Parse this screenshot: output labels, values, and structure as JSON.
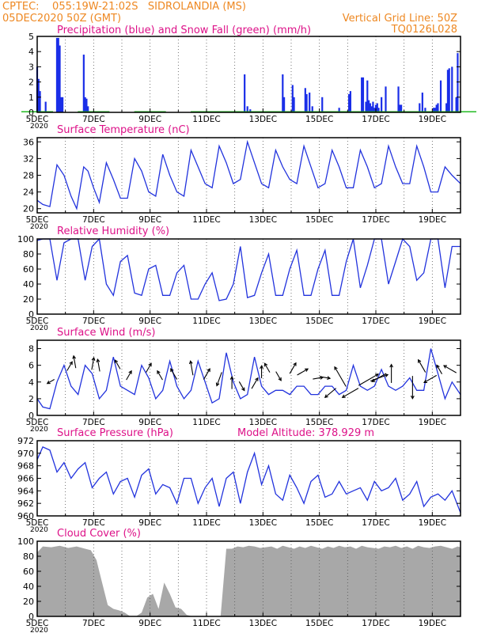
{
  "header": {
    "line1_left": "CPTEC:    055:19W-21:02S   SIDROLANDIA (MS)",
    "line2_left": "05DEC2020 50Z (GMT)",
    "line2_right": "Vertical Grid Line: 50Z",
    "line3_right": "TQ0126L028",
    "orange": "#ee8822",
    "magenta": "#dd1188"
  },
  "x_ticks": {
    "labels": [
      "5DEC",
      "7DEC",
      "9DEC",
      "11DEC",
      "13DEC",
      "15DEC",
      "17DEC",
      "19DEC"
    ],
    "days": [
      0,
      2,
      4,
      6,
      8,
      10,
      12,
      14
    ],
    "range": [
      0,
      15
    ],
    "year_label": "2020"
  },
  "chart_data": [
    {
      "type": "bar",
      "title": "Precipitation (blue) and Snow Fall (green) (mm/h)",
      "ylim": [
        0,
        5
      ],
      "yticks": [
        "0",
        "1",
        "2",
        "3",
        "4",
        "5"
      ],
      "series": [
        {
          "color": "#1a2ee8",
          "x": [
            0.0,
            0.05,
            0.1,
            0.3,
            0.7,
            0.75,
            0.8,
            0.85,
            0.9,
            1.65,
            1.7,
            1.75,
            1.8,
            7.35,
            7.45,
            7.55,
            8.7,
            8.75,
            9.05,
            9.1,
            9.5,
            9.55,
            9.65,
            9.75,
            10.1,
            10.7,
            11.05,
            11.1,
            11.5,
            11.55,
            11.65,
            11.7,
            11.75,
            11.8,
            11.85,
            11.9,
            11.95,
            12.0,
            12.05,
            12.1,
            12.2,
            12.35,
            12.8,
            12.85,
            12.9,
            13.55,
            13.65,
            13.75,
            14.05,
            14.1,
            14.15,
            14.2,
            14.3,
            14.5,
            14.55,
            14.6,
            14.7,
            14.85,
            14.9
          ],
          "values": [
            3.0,
            2.2,
            1.4,
            0.7,
            4.9,
            4.9,
            4.4,
            1.0,
            1.0,
            3.8,
            1.0,
            0.9,
            0.4,
            2.5,
            0.4,
            0.2,
            2.5,
            1.0,
            1.8,
            1.0,
            1.6,
            1.2,
            1.3,
            0.4,
            1.0,
            0.3,
            1.2,
            1.4,
            2.3,
            2.3,
            0.7,
            2.1,
            0.8,
            0.6,
            0.4,
            0.7,
            0.3,
            0.5,
            0.6,
            0.3,
            1.0,
            1.7,
            1.7,
            0.5,
            0.5,
            0.6,
            1.3,
            0.3,
            0.3,
            0.3,
            0.5,
            0.6,
            2.1,
            0.6,
            2.8,
            2.9,
            3.0,
            1.0,
            3.9
          ]
        },
        {
          "color": "#22bb22",
          "x": [
            0,
            2,
            4,
            6,
            7,
            8,
            9,
            10,
            11,
            12,
            13,
            14,
            15
          ],
          "values": [
            0.05,
            0.05,
            0.05,
            0.05,
            0.05,
            0.05,
            0.05,
            0.05,
            0.05,
            0.05,
            0.05,
            0.05,
            0.05
          ]
        }
      ]
    },
    {
      "type": "line",
      "title": "Surface Temperature (nC)",
      "ylim": [
        19,
        37
      ],
      "yticks": [
        "20",
        "24",
        "28",
        "32",
        "36"
      ],
      "tick_values": [
        20,
        24,
        28,
        32,
        36
      ],
      "x": [
        0.0,
        0.2,
        0.45,
        0.7,
        0.95,
        1.2,
        1.4,
        1.65,
        1.8,
        2.0,
        2.2,
        2.45,
        2.7,
        2.95,
        3.2,
        3.45,
        3.7,
        3.95,
        4.2,
        4.45,
        4.7,
        4.95,
        5.2,
        5.45,
        5.7,
        5.95,
        6.2,
        6.45,
        6.7,
        6.95,
        7.2,
        7.45,
        7.7,
        7.95,
        8.2,
        8.45,
        8.7,
        8.95,
        9.2,
        9.45,
        9.7,
        9.95,
        10.2,
        10.45,
        10.7,
        10.95,
        11.2,
        11.45,
        11.7,
        11.95,
        12.2,
        12.45,
        12.7,
        12.95,
        13.2,
        13.45,
        13.7,
        13.95,
        14.2,
        14.45,
        14.7,
        15.0
      ],
      "values": [
        22,
        21,
        20.5,
        30.5,
        28,
        23,
        20,
        30,
        29,
        25,
        21.5,
        31,
        27,
        22.5,
        22.5,
        32,
        29,
        24,
        23,
        33,
        28,
        24,
        23,
        34,
        30,
        26,
        25,
        35,
        31,
        26,
        27,
        36,
        31,
        26,
        25,
        34,
        30,
        27,
        26,
        35,
        30,
        25,
        26,
        34,
        30,
        25,
        25,
        34,
        30,
        25,
        26,
        35,
        30,
        26,
        26,
        35,
        30,
        24,
        24,
        30,
        28,
        26
      ]
    },
    {
      "type": "line",
      "title": "Relative Humidity (%)",
      "ylim": [
        0,
        100
      ],
      "yticks": [
        "0",
        "20",
        "40",
        "60",
        "80",
        "100"
      ],
      "tick_values": [
        0,
        20,
        40,
        60,
        80,
        100
      ],
      "x": [
        0.0,
        0.2,
        0.45,
        0.7,
        0.95,
        1.2,
        1.45,
        1.7,
        1.95,
        2.2,
        2.45,
        2.7,
        2.95,
        3.2,
        3.45,
        3.7,
        3.95,
        4.2,
        4.45,
        4.7,
        4.95,
        5.2,
        5.45,
        5.7,
        5.95,
        6.2,
        6.45,
        6.7,
        6.95,
        7.2,
        7.45,
        7.7,
        7.95,
        8.2,
        8.45,
        8.7,
        8.95,
        9.2,
        9.45,
        9.7,
        9.95,
        10.2,
        10.45,
        10.7,
        10.95,
        11.2,
        11.45,
        11.7,
        11.95,
        12.2,
        12.45,
        12.7,
        12.95,
        13.2,
        13.45,
        13.7,
        13.95,
        14.2,
        14.45,
        14.7,
        15.0
      ],
      "values": [
        98,
        100,
        100,
        45,
        95,
        100,
        100,
        45,
        90,
        100,
        40,
        25,
        70,
        78,
        28,
        25,
        60,
        65,
        25,
        25,
        55,
        65,
        20,
        20,
        40,
        55,
        18,
        20,
        40,
        90,
        22,
        25,
        55,
        80,
        25,
        25,
        60,
        85,
        25,
        25,
        60,
        85,
        25,
        25,
        70,
        100,
        35,
        65,
        100,
        100,
        40,
        70,
        100,
        90,
        45,
        55,
        100,
        100,
        35,
        90,
        90
      ]
    },
    {
      "type": "line",
      "title": "Surface Wind (m/s)",
      "ylim": [
        0,
        9
      ],
      "yticks": [
        "0",
        "2",
        "4",
        "6",
        "8"
      ],
      "tick_values": [
        0,
        2,
        4,
        6,
        8
      ],
      "x": [
        0.0,
        0.2,
        0.45,
        0.7,
        0.95,
        1.2,
        1.45,
        1.7,
        1.95,
        2.2,
        2.45,
        2.7,
        2.95,
        3.2,
        3.45,
        3.7,
        3.95,
        4.2,
        4.45,
        4.7,
        4.95,
        5.2,
        5.45,
        5.7,
        5.95,
        6.2,
        6.45,
        6.7,
        6.95,
        7.2,
        7.45,
        7.7,
        7.95,
        8.2,
        8.45,
        8.7,
        8.95,
        9.2,
        9.45,
        9.7,
        9.95,
        10.2,
        10.45,
        10.7,
        10.95,
        11.2,
        11.45,
        11.7,
        11.95,
        12.2,
        12.45,
        12.7,
        12.95,
        13.2,
        13.45,
        13.7,
        13.95,
        14.2,
        14.45,
        14.7,
        15.0
      ],
      "values": [
        2,
        1,
        0.8,
        4,
        6,
        3.5,
        2.5,
        6,
        5,
        2,
        3,
        7,
        3.5,
        3,
        2.5,
        6,
        4.5,
        2,
        3,
        6.5,
        3.5,
        2,
        3,
        6.5,
        4,
        1.5,
        2,
        7.5,
        4,
        2,
        2.5,
        7,
        3.5,
        2.5,
        3,
        3,
        2.5,
        3.5,
        3.5,
        2.5,
        2.5,
        3.5,
        3.5,
        2.5,
        3,
        6,
        3.5,
        3,
        3.5,
        5.5,
        3.5,
        3,
        3.5,
        4.5,
        3,
        3,
        8,
        5,
        2,
        4,
        2.5
      ],
      "wind_arrows": {
        "x": [
          0.55,
          1.1,
          1.35,
          1.95,
          2.2,
          2.9,
          3.2,
          3.9,
          4.4,
          4.9,
          5.5,
          5.95,
          6.5,
          6.9,
          7.2,
          7.65,
          7.95,
          8.2,
          8.5,
          9.0,
          9.3,
          9.85,
          10.1,
          10.5,
          10.85,
          11.25,
          11.55,
          11.95,
          12.25,
          12.55,
          13.3,
          13.7,
          14.05,
          14.3,
          14.75
        ],
        "y": [
          4.2,
          5.6,
          6.0,
          5.8,
          5.6,
          5.8,
          4.5,
          5.4,
          4.5,
          4.6,
          5.2,
          4.6,
          4.8,
          3.5,
          3.8,
          3.5,
          4.8,
          5.4,
          5.0,
          5.3,
          5.0,
          4.4,
          4.6,
          3.0,
          4.0,
          3.0,
          3.9,
          4.3,
          4.8,
          4.4,
          4.1,
          5.5,
          4.6,
          5.2,
          5.3
        ],
        "dir_deg": [
          210,
          60,
          100,
          80,
          100,
          120,
          60,
          60,
          120,
          120,
          100,
          60,
          250,
          90,
          300,
          60,
          90,
          120,
          300,
          60,
          30,
          10,
          350,
          220,
          120,
          210,
          30,
          20,
          210,
          90,
          270,
          120,
          210,
          120,
          150
        ],
        "len_px": [
          8,
          10,
          12,
          12,
          12,
          10,
          10,
          10,
          10,
          12,
          14,
          12,
          14,
          12,
          10,
          12,
          12,
          10,
          10,
          12,
          12,
          10,
          10,
          14,
          22,
          18,
          22,
          18,
          16,
          18,
          22,
          14,
          14,
          10,
          14
        ]
      }
    },
    {
      "type": "line",
      "title": "Surface Pressure (hPa)",
      "annotation": "Model Altitude: 378.929 m",
      "ylim": [
        960,
        972
      ],
      "yticks": [
        "960",
        "962",
        "964",
        "966",
        "968",
        "970",
        "972"
      ],
      "tick_values": [
        960,
        962,
        964,
        966,
        968,
        970,
        972
      ],
      "x": [
        0.0,
        0.2,
        0.45,
        0.7,
        0.95,
        1.2,
        1.45,
        1.7,
        1.95,
        2.2,
        2.45,
        2.7,
        2.95,
        3.2,
        3.45,
        3.7,
        3.95,
        4.2,
        4.45,
        4.7,
        4.95,
        5.2,
        5.45,
        5.7,
        5.95,
        6.2,
        6.45,
        6.7,
        6.95,
        7.2,
        7.45,
        7.7,
        7.95,
        8.2,
        8.45,
        8.7,
        8.95,
        9.2,
        9.45,
        9.7,
        9.95,
        10.2,
        10.45,
        10.7,
        10.95,
        11.2,
        11.45,
        11.7,
        11.95,
        12.2,
        12.45,
        12.7,
        12.95,
        13.2,
        13.45,
        13.7,
        13.95,
        14.2,
        14.45,
        14.7,
        15.0
      ],
      "values": [
        969,
        971,
        970.5,
        967,
        968.5,
        966,
        967.5,
        968.5,
        964.5,
        966,
        967,
        963.5,
        965.5,
        966,
        963,
        966.5,
        967.5,
        963.5,
        965,
        964.5,
        962,
        966,
        966,
        962,
        964.5,
        966,
        961.5,
        966,
        967,
        962,
        967,
        970,
        965,
        968,
        963.5,
        962.5,
        966.5,
        964.5,
        962,
        965.5,
        966.5,
        963,
        963.5,
        965.5,
        963.5,
        964,
        964.5,
        962.5,
        965.5,
        964,
        964.5,
        966,
        962.5,
        963.5,
        965.5,
        961.5,
        963,
        963.5,
        962.5,
        964,
        960.5
      ]
    },
    {
      "type": "area",
      "title": "Cloud Cover (%)",
      "ylim": [
        0,
        100
      ],
      "yticks": [
        "0",
        "20",
        "40",
        "60",
        "80",
        "100"
      ],
      "tick_values": [
        0,
        20,
        40,
        60,
        80,
        100
      ],
      "color": "#a8a8a8",
      "x": [
        0.0,
        0.2,
        0.5,
        0.8,
        1.1,
        1.4,
        1.7,
        1.9,
        2.1,
        2.3,
        2.5,
        2.7,
        2.9,
        3.1,
        3.3,
        3.5,
        3.7,
        3.9,
        4.1,
        4.3,
        4.5,
        4.7,
        4.9,
        5.1,
        5.3,
        5.5,
        5.7,
        5.9,
        6.1,
        6.3,
        6.5,
        6.7,
        6.9,
        7.1,
        7.3,
        7.5,
        7.7,
        7.9,
        8.1,
        8.3,
        8.5,
        8.7,
        8.9,
        9.1,
        9.3,
        9.5,
        9.7,
        9.9,
        10.1,
        10.3,
        10.5,
        10.7,
        10.9,
        11.1,
        11.3,
        11.5,
        11.7,
        11.9,
        12.1,
        12.3,
        12.5,
        12.7,
        12.9,
        13.1,
        13.3,
        13.5,
        13.7,
        13.9,
        14.1,
        14.3,
        14.5,
        14.7,
        14.9,
        15.0
      ],
      "values": [
        85,
        93,
        92,
        94,
        91,
        93,
        90,
        88,
        75,
        45,
        15,
        10,
        8,
        5,
        0,
        0,
        5,
        25,
        30,
        10,
        45,
        30,
        12,
        10,
        2,
        0,
        0,
        0,
        0,
        0,
        0,
        90,
        90,
        93,
        92,
        94,
        93,
        91,
        92,
        93,
        90,
        94,
        92,
        90,
        93,
        91,
        94,
        92,
        90,
        93,
        91,
        94,
        92,
        93,
        90,
        94,
        92,
        91,
        90,
        93,
        92,
        94,
        91,
        93,
        90,
        94,
        92,
        91,
        93,
        94,
        92,
        90,
        93,
        92
      ]
    }
  ]
}
